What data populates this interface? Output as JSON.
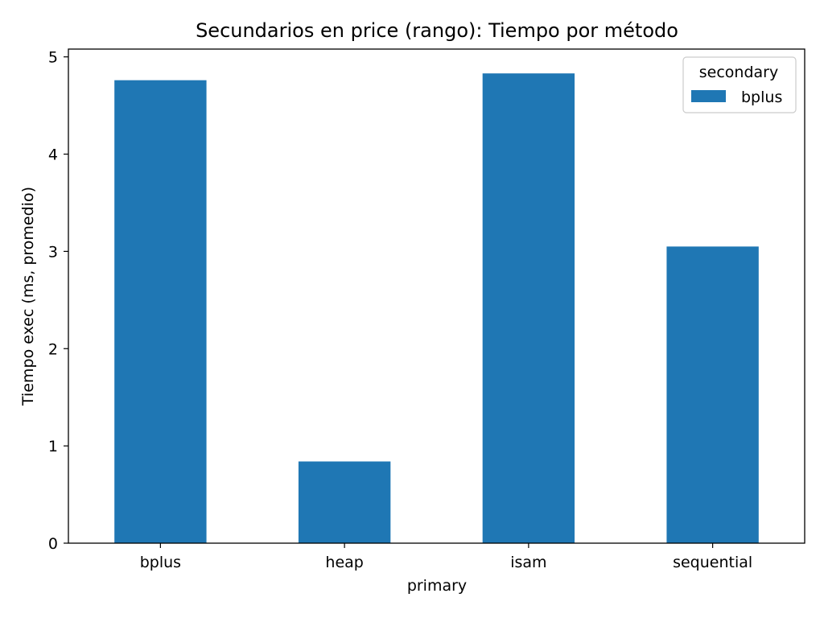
{
  "chart_data": {
    "type": "bar",
    "title": "Secundarios en price (rango): Tiempo por método",
    "xlabel": "primary",
    "ylabel": "Tiempo exec (ms, promedio)",
    "categories": [
      "bplus",
      "heap",
      "isam",
      "sequential"
    ],
    "series": [
      {
        "name": "bplus",
        "color": "#1f77b4",
        "values": [
          4.76,
          0.84,
          4.83,
          3.05
        ]
      }
    ],
    "ylim": [
      0,
      5.08
    ],
    "yticks": [
      "0",
      "1",
      "2",
      "3",
      "4",
      "5"
    ],
    "grid": false,
    "legend": {
      "title": "secondary",
      "placement": "top-right"
    }
  }
}
